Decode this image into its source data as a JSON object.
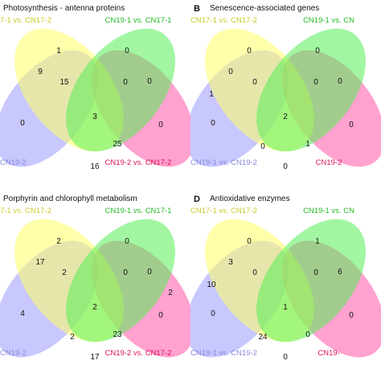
{
  "colors": {
    "A": "#ffff66",
    "B": "#55ee55",
    "C": "#ff55aa",
    "D": "#9a9aff",
    "labelA": "#c9c92a",
    "labelB": "#22bb22",
    "labelC": "#dd1155",
    "labelD": "#8888dd"
  },
  "panels": [
    {
      "letter": "",
      "title": "Photosynthesis - antenna proteins",
      "sets": {
        "A": "7-1 vs. CN17-2",
        "B": "CN19-1 vs. CN17-1",
        "C": "CN19-2 vs. CN17-2",
        "D": "CN19-2"
      },
      "regions": {
        "A": "1",
        "B": "0",
        "C": "",
        "D": "",
        "AB": "",
        "AD": "9",
        "BC": "0",
        "ABD": "15",
        "ABC": "0",
        "AD2": "0",
        "ABCD": "3",
        "BC2": "0",
        "ACD": "",
        "BCD": "25",
        "CD": "16"
      }
    },
    {
      "letter": "B",
      "title": "Senescence-associated genes",
      "sets": {
        "A": "CN17-1 vs. CN17-2",
        "B": "CN19-1 vs. CN",
        "C": "CN19-2",
        "D": "CN19-1 vs. CN19-2"
      },
      "regions": {
        "A": "0",
        "B": "0",
        "C": "",
        "D": "1",
        "AB": "",
        "AD": "0",
        "BC": "0",
        "ABD": "0",
        "ABC": "0",
        "AD2": "0",
        "ABCD": "2",
        "BC2": "0",
        "ACD": "0",
        "BCD": "1",
        "CD": "0"
      }
    },
    {
      "letter": "",
      "title": "Porphyrin and chlorophyll metabolism",
      "sets": {
        "A": "7-1 vs. CN17-2",
        "B": "CN19-1 vs. CN17-1",
        "C": "CN19-2 vs. CN17-2",
        "D": "CN19-2"
      },
      "regions": {
        "A": "2",
        "B": "0",
        "C": "2",
        "D": "",
        "AB": "",
        "AD": "17",
        "BC": "0",
        "ABD": "2",
        "ABC": "0",
        "AD2": "4",
        "ABCD": "2",
        "BC2": "0",
        "ACD": "2",
        "BCD": "23",
        "CD": "17"
      }
    },
    {
      "letter": "D",
      "title": "Antioxidative enzymes",
      "sets": {
        "A": "CN17-1 vs. CN17-2",
        "B": "CN19-1 vs. CN",
        "C": "CN19-",
        "D": "CN19-1 vs. CN19-2"
      },
      "regions": {
        "A": "0",
        "B": "1",
        "C": "",
        "D": "10",
        "AB": "",
        "AD": "3",
        "BC": "6",
        "ABD": "0",
        "ABC": "0",
        "AD2": "0",
        "ABCD": "1",
        "BC2": "0",
        "ACD": "24",
        "BCD": "0",
        "CD": "0"
      }
    }
  ]
}
